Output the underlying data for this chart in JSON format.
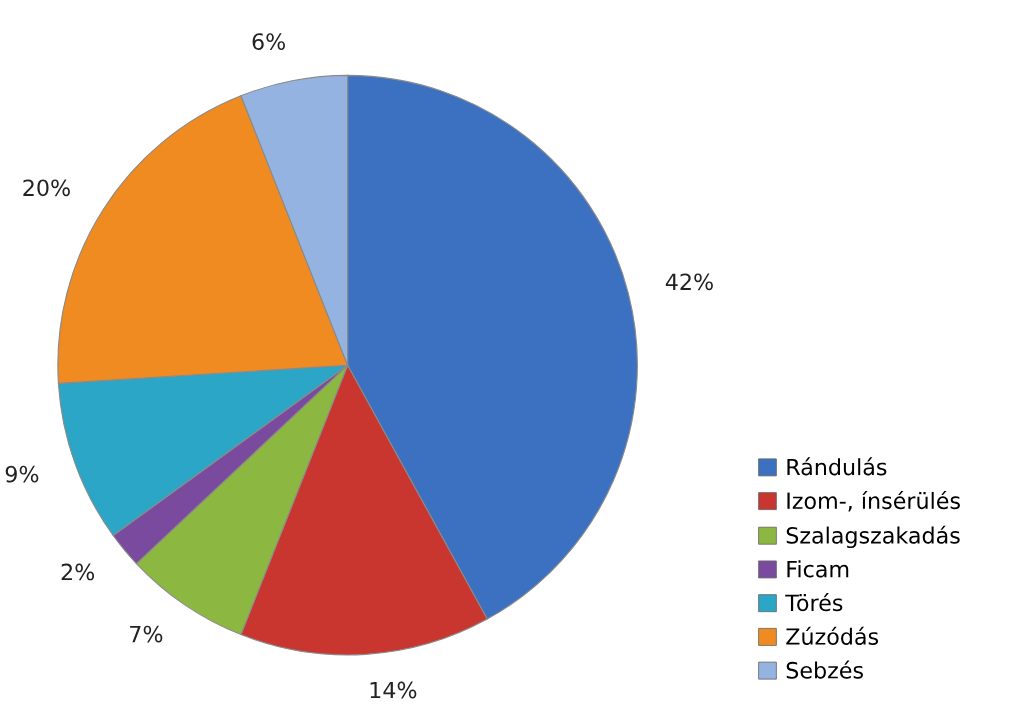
{
  "chart_data": {
    "type": "pie",
    "categories": [
      "Rándulás",
      "Izom-, ínsérülés",
      "Szalagszakadás",
      "Ficam",
      "Törés",
      "Zúzódás",
      "Sebzés"
    ],
    "values": [
      42,
      14,
      7,
      2,
      9,
      20,
      6
    ],
    "value_labels": [
      "42%",
      "14%",
      "7%",
      "2%",
      "9%",
      "20%",
      "6%"
    ],
    "colors": [
      "#3c71c2",
      "#c9352f",
      "#8cb740",
      "#7a4a9e",
      "#2ba6c6",
      "#f08b22",
      "#95b3e0"
    ],
    "legend": "right"
  }
}
